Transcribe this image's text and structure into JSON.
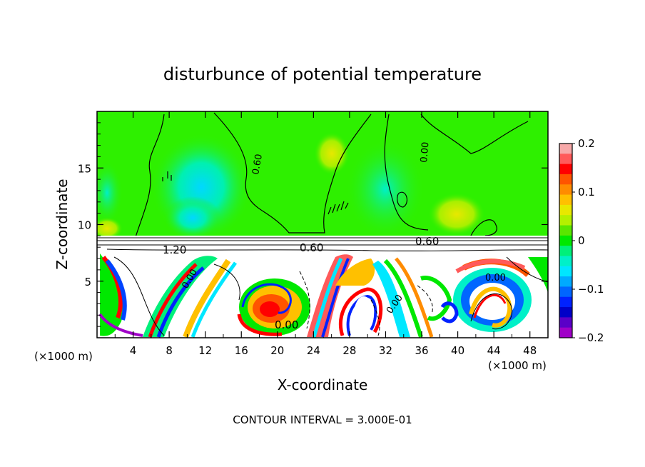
{
  "chart_data": {
    "type": "heatmap",
    "title": "disturbunce of potential temperature",
    "xlabel": "X-coordinate",
    "ylabel": "Z-coordinate",
    "x_unit_left": "(×1000 m)",
    "x_unit_right": "(×1000 m)",
    "xlim": [
      0,
      50
    ],
    "ylim": [
      0,
      20
    ],
    "x_ticks": [
      4,
      8,
      12,
      16,
      20,
      24,
      28,
      32,
      36,
      40,
      44,
      48
    ],
    "y_ticks": [
      5,
      10,
      15
    ],
    "colorbar": {
      "range": [
        -0.2,
        0.2
      ],
      "tick_values": [
        0.2,
        0.1,
        0,
        -0.1,
        -0.2
      ],
      "tick_labels": [
        "0.2",
        "0.1",
        "0",
        "−0.1",
        "−0.2"
      ],
      "colors": [
        "#f7a9a9",
        "#ff5a5a",
        "#ff0000",
        "#ff5500",
        "#ff8c00",
        "#ffc000",
        "#e8e800",
        "#b4f000",
        "#5ae600",
        "#00e800",
        "#00f07a",
        "#00f0c8",
        "#00e6ff",
        "#00aaff",
        "#0066ff",
        "#0022ff",
        "#0000c8",
        "#5a00c8",
        "#a000c8"
      ]
    },
    "contour_labels": [
      "0.00",
      "0.00",
      "0.00",
      "0.60",
      "0.60",
      "1.20",
      "0.60",
      "0.00",
      "0.00"
    ],
    "footer": "CONTOUR INTERVAL = 3.000E-01",
    "colors": {
      "upper_background": "#2ef000",
      "cool_anomaly": "#00e6ff",
      "warm_anomaly": "#e8e800",
      "lower_background": "#ffffff"
    }
  }
}
